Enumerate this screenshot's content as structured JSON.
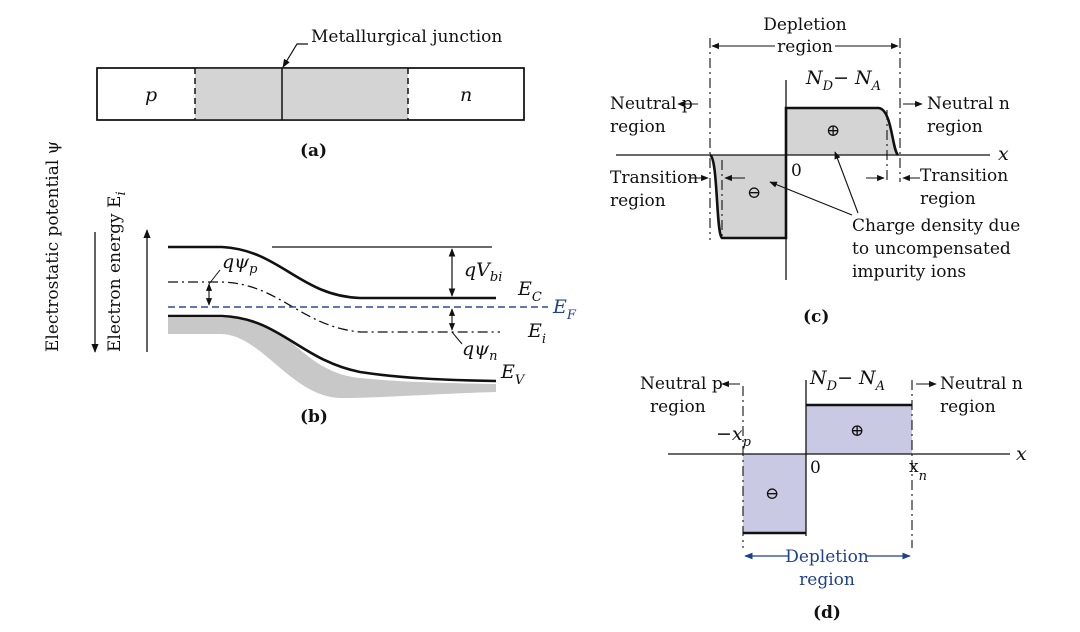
{
  "panel_a": {
    "caption": "(a)",
    "p_label": "p",
    "n_label": "n",
    "junction_label": "Metallurgical junction"
  },
  "panel_b": {
    "caption": "(b)",
    "axis_potential": "Electrostatic potential ψ",
    "axis_energy": "Electron energy E",
    "axis_energy_sub": "i",
    "qvbi": "qV",
    "qvbi_sub": "bi",
    "q_psi_p": "qψ",
    "q_psi_p_sub": "p",
    "q_psi_n": "qψ",
    "q_psi_n_sub": "n",
    "ec": "E",
    "ec_sub": "C",
    "ef": "E",
    "ef_sub": "F",
    "ei": "E",
    "ei_sub": "i",
    "ev": "E",
    "ev_sub": "V"
  },
  "panel_c": {
    "caption": "(c)",
    "depletion_line1": "Depletion",
    "depletion_line2": "region",
    "nd_na": "N",
    "nd_sub": "D",
    "minus": "− N",
    "na_sub": "A",
    "neutral_p_1": "Neutral p",
    "neutral_p_2": "region",
    "neutral_n_1": "Neutral n",
    "neutral_n_2": "region",
    "transition_left_1": "Transition",
    "transition_left_2": "region",
    "transition_right_1": "Transition",
    "transition_right_2": "region",
    "charge_1": "Charge density due",
    "charge_2": "to uncompensated",
    "charge_3": "impurity ions",
    "zero": "0",
    "x": "x",
    "plus_sign": "⊕",
    "minus_sign": "⊖"
  },
  "panel_d": {
    "caption": "(d)",
    "nd_na": "N",
    "nd_sub": "D",
    "minus": "− N",
    "na_sub": "A",
    "neutral_p_1": "Neutral p",
    "neutral_p_2": "region",
    "neutral_n_1": "Neutral n",
    "neutral_n_2": "region",
    "xp": "−x",
    "xp_sub": "p",
    "xn": "x",
    "xn_sub": "n",
    "zero": "0",
    "x": "x",
    "depletion_1": "Depletion",
    "depletion_2": "region",
    "plus_sign": "⊕",
    "minus_sign": "⊖"
  },
  "colors": {
    "gray_fill": "#d4d4d4",
    "band_shadow": "#c8c8c8",
    "lavender_fill": "#c9c9e3",
    "fermi_blue": "#2c4a9a",
    "ink": "#111111"
  }
}
